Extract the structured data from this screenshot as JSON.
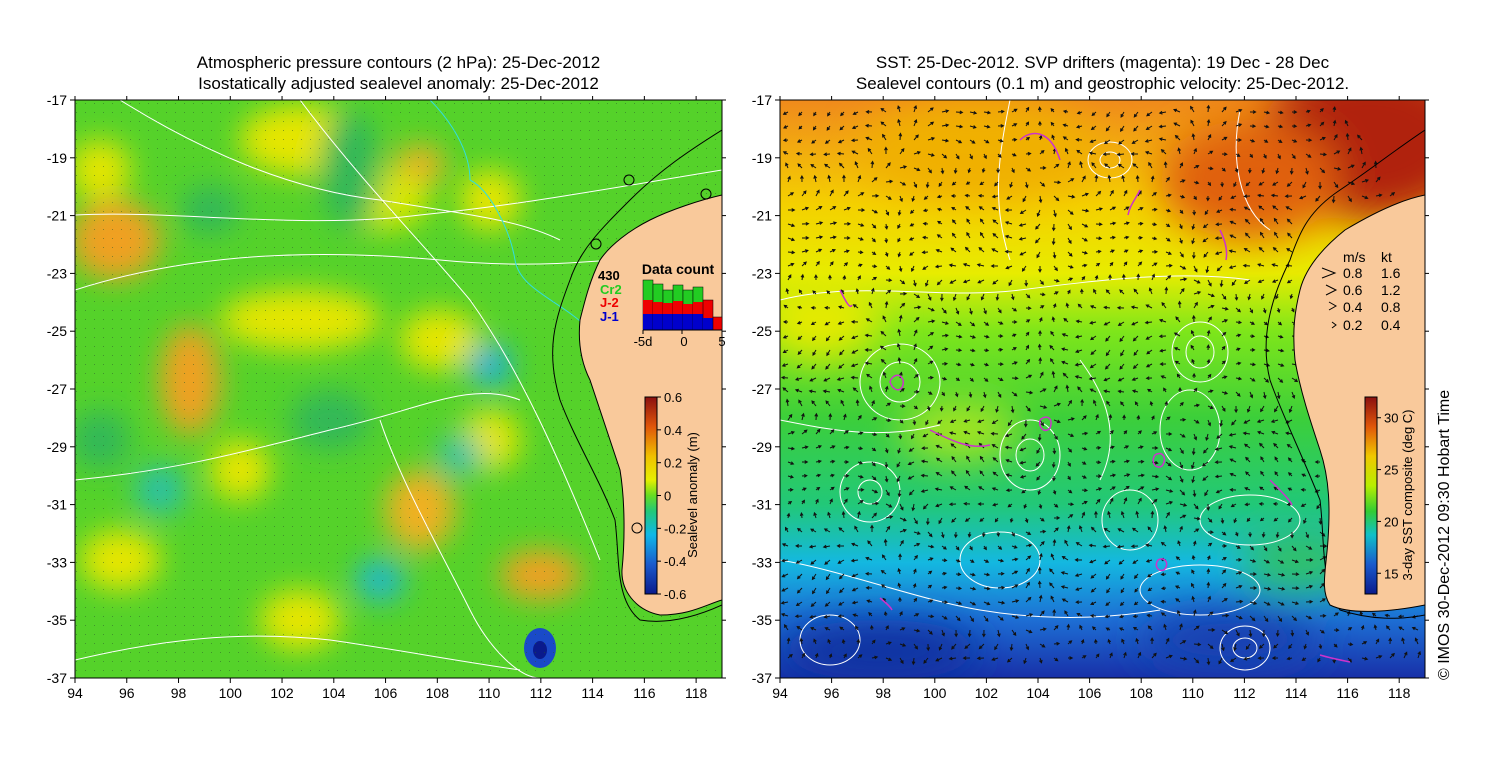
{
  "left_panel": {
    "title_line1": "Atmospheric pressure contours (2 hPa): 25-Dec-2012",
    "title_line2": "Isostatically adjusted sealevel anomaly: 25-Dec-2012",
    "colorbar": {
      "label": "Sealevel anomaly (m)",
      "ticks": [
        "0.6",
        "0.4",
        "0.2",
        "0",
        "-0.2",
        "-0.4",
        "-0.6"
      ],
      "min": -0.6,
      "max": 0.6
    },
    "data_count": {
      "title": "Data count",
      "total": "430",
      "legend": [
        {
          "name": "Cr2",
          "color": "#22cc22"
        },
        {
          "name": "J-2",
          "color": "#ee0000"
        },
        {
          "name": "J-1",
          "color": "#0000cc"
        }
      ],
      "x_ticks": [
        "-5d",
        "0",
        "5"
      ]
    }
  },
  "right_panel": {
    "title_line1": "SST: 25-Dec-2012. SVP drifters (magenta): 19 Dec - 28 Dec",
    "title_line2": "Sealevel contours (0.1 m) and geostrophic velocity: 25-Dec-2012.",
    "colorbar": {
      "label": "3-day SST composite (deg C)",
      "ticks": [
        "30",
        "25",
        "20",
        "15"
      ],
      "min": 13,
      "max": 32
    },
    "velocity_key": {
      "header_ms": "m/s",
      "header_kt": "kt",
      "rows": [
        {
          "ms": "0.8",
          "kt": "1.6"
        },
        {
          "ms": "0.6",
          "kt": "1.2"
        },
        {
          "ms": "0.4",
          "kt": "0.8"
        },
        {
          "ms": "0.2",
          "kt": "0.4"
        }
      ]
    }
  },
  "axes": {
    "x_ticks": [
      "94",
      "96",
      "98",
      "100",
      "102",
      "104",
      "106",
      "108",
      "110",
      "112",
      "114",
      "116",
      "118"
    ],
    "y_ticks": [
      "-17",
      "-19",
      "-21",
      "-23",
      "-25",
      "-27",
      "-29",
      "-31",
      "-33",
      "-35",
      "-37"
    ],
    "x_range": [
      94,
      119
    ],
    "y_range": [
      -37,
      -17
    ]
  },
  "credit": "© IMOS 30-Dec-2012 09:30 Hobart Time",
  "colors": {
    "land": "#f9c99b",
    "contour": "#ffffff",
    "drifter": "#cc33cc",
    "coast": "#000000"
  }
}
